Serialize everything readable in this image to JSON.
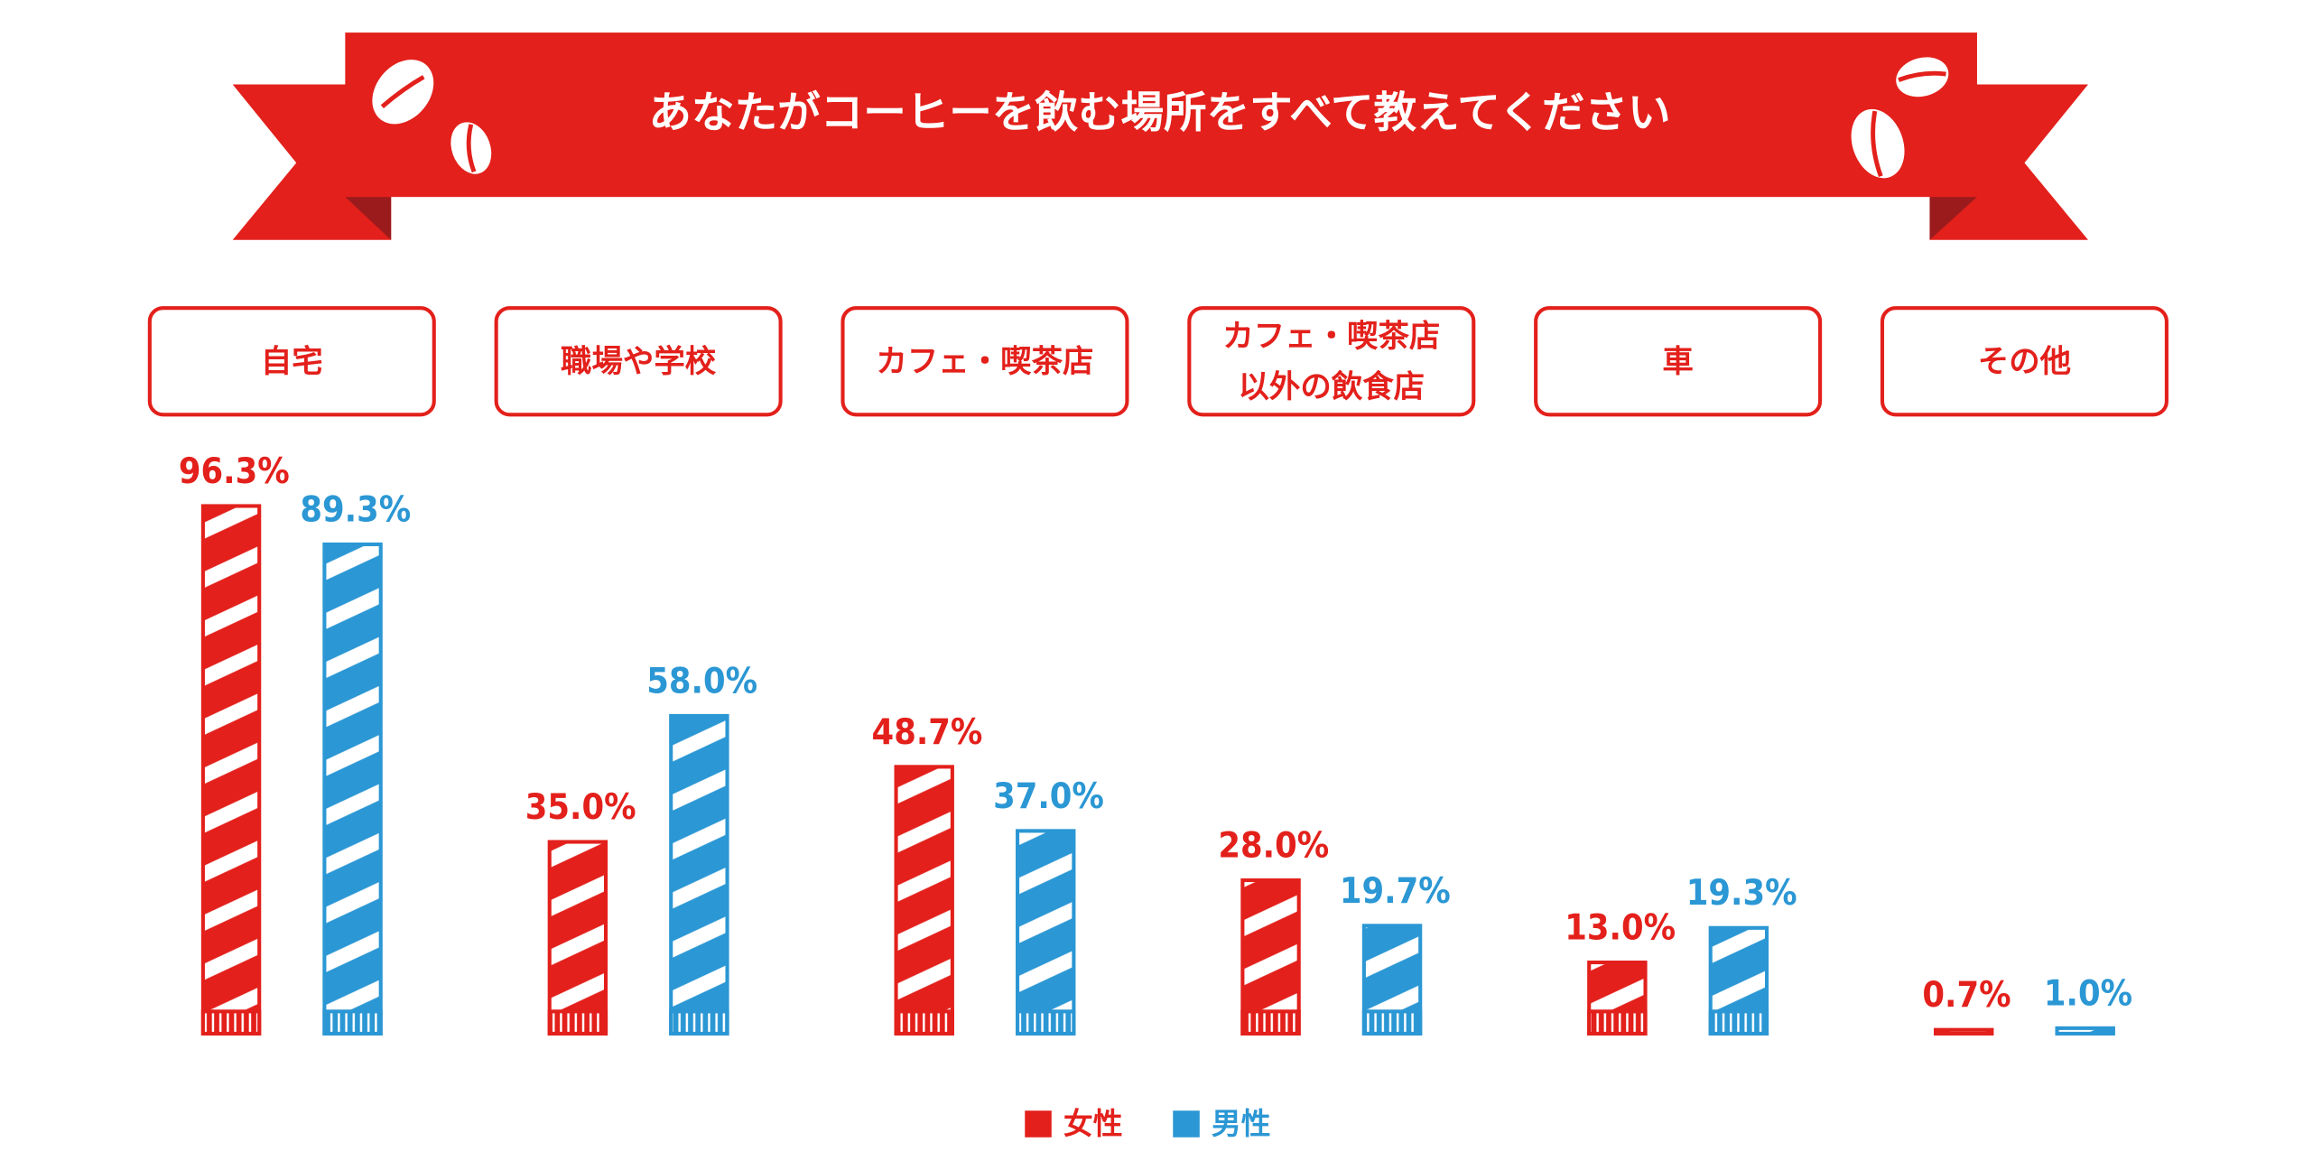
{
  "chart_data": {
    "type": "bar",
    "title": "あなたがコーヒーを飲む場所をすべて教えてください",
    "categories": [
      "自宅",
      "職場や学校",
      "カフェ・喫茶店",
      "カフェ・喫茶店\n以外の飲食店",
      "車",
      "その他"
    ],
    "series": [
      {
        "name": "女性",
        "color": "#e3201b",
        "values": [
          96.3,
          35.0,
          48.7,
          28.0,
          13.0,
          0.7
        ],
        "value_labels": [
          "96.3%",
          "35.0%",
          "48.7%",
          "28.0%",
          "13.0%",
          "0.7%"
        ]
      },
      {
        "name": "男性",
        "color": "#2b97d4",
        "values": [
          89.3,
          58.0,
          37.0,
          19.7,
          19.3,
          1.0
        ],
        "value_labels": [
          "89.3%",
          "58.0%",
          "37.0%",
          "19.7%",
          "19.3%",
          "1.0%"
        ]
      }
    ]
  }
}
